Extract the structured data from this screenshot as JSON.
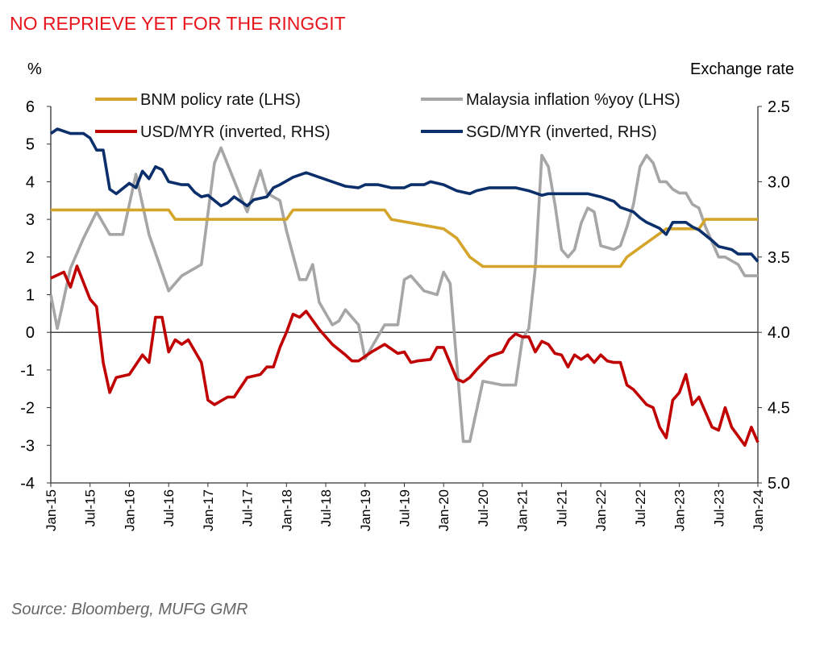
{
  "chart_data": {
    "type": "line",
    "title": "NO REPRIEVE YET FOR THE RINGGIT",
    "ylabel_left": "%",
    "ylabel_right": "Exchange rate",
    "ylim_left": [
      -4,
      6
    ],
    "yticks_left": [
      6,
      5,
      4,
      3,
      2,
      1,
      0,
      -1,
      -2,
      -3,
      -4
    ],
    "ylim_right": [
      2.5,
      5.0
    ],
    "right_axis_inverted": true,
    "yticks_right": [
      "2.5",
      "3.0",
      "3.5",
      "4.0",
      "4.5",
      "5.0"
    ],
    "xlim": [
      "2015-01",
      "2024-01"
    ],
    "xticks": [
      "Jan-15",
      "Jul-15",
      "Jan-16",
      "Jul-16",
      "Jan-17",
      "Jul-17",
      "Jan-18",
      "Jul-18",
      "Jan-19",
      "Jul-19",
      "Jan-20",
      "Jul-20",
      "Jan-21",
      "Jul-21",
      "Jan-22",
      "Jul-22",
      "Jan-23",
      "Jul-23",
      "Jan-24"
    ],
    "grid": false,
    "legend_position": "top",
    "source": "Source: Bloomberg, MUFG GMR",
    "colors": {
      "title": "#e8141b",
      "policy": "#d4a52a",
      "inflation": "#a6a6a6",
      "usd": "#c00000",
      "sgd": "#0b2f6b"
    },
    "series": [
      {
        "name": "BNM policy rate (LHS)",
        "axis": "left",
        "color_key": "policy",
        "points": [
          [
            "2015-01",
            3.25
          ],
          [
            "2016-07",
            3.25
          ],
          [
            "2016-08",
            3.0
          ],
          [
            "2018-01",
            3.0
          ],
          [
            "2018-02",
            3.25
          ],
          [
            "2019-04",
            3.25
          ],
          [
            "2019-05",
            3.0
          ],
          [
            "2020-01",
            2.75
          ],
          [
            "2020-03",
            2.5
          ],
          [
            "2020-05",
            2.0
          ],
          [
            "2020-07",
            1.75
          ],
          [
            "2022-04",
            1.75
          ],
          [
            "2022-05",
            2.0
          ],
          [
            "2022-07",
            2.25
          ],
          [
            "2022-09",
            2.5
          ],
          [
            "2022-11",
            2.75
          ],
          [
            "2023-04",
            2.75
          ],
          [
            "2023-05",
            3.0
          ],
          [
            "2024-01",
            3.0
          ]
        ]
      },
      {
        "name": "Malaysia inflation %yoy (LHS)",
        "axis": "left",
        "color_key": "inflation",
        "points": [
          [
            "2015-01",
            1.0
          ],
          [
            "2015-02",
            0.1
          ],
          [
            "2015-04",
            1.7
          ],
          [
            "2015-06",
            2.5
          ],
          [
            "2015-08",
            3.2
          ],
          [
            "2015-10",
            2.6
          ],
          [
            "2015-12",
            2.6
          ],
          [
            "2016-02",
            4.2
          ],
          [
            "2016-04",
            2.6
          ],
          [
            "2016-07",
            1.1
          ],
          [
            "2016-09",
            1.5
          ],
          [
            "2016-12",
            1.8
          ],
          [
            "2017-02",
            4.5
          ],
          [
            "2017-03",
            4.9
          ],
          [
            "2017-06",
            3.6
          ],
          [
            "2017-07",
            3.2
          ],
          [
            "2017-09",
            4.3
          ],
          [
            "2017-10",
            3.7
          ],
          [
            "2017-12",
            3.5
          ],
          [
            "2018-01",
            2.7
          ],
          [
            "2018-03",
            1.4
          ],
          [
            "2018-04",
            1.4
          ],
          [
            "2018-05",
            1.8
          ],
          [
            "2018-06",
            0.8
          ],
          [
            "2018-08",
            0.2
          ],
          [
            "2018-09",
            0.3
          ],
          [
            "2018-10",
            0.6
          ],
          [
            "2018-12",
            0.2
          ],
          [
            "2019-01",
            -0.7
          ],
          [
            "2019-02",
            -0.4
          ],
          [
            "2019-04",
            0.2
          ],
          [
            "2019-06",
            0.2
          ],
          [
            "2019-07",
            1.4
          ],
          [
            "2019-08",
            1.5
          ],
          [
            "2019-10",
            1.1
          ],
          [
            "2019-12",
            1.0
          ],
          [
            "2020-01",
            1.6
          ],
          [
            "2020-02",
            1.3
          ],
          [
            "2020-04",
            -2.9
          ],
          [
            "2020-05",
            -2.9
          ],
          [
            "2020-07",
            -1.3
          ],
          [
            "2020-10",
            -1.4
          ],
          [
            "2020-12",
            -1.4
          ],
          [
            "2021-01",
            -0.2
          ],
          [
            "2021-02",
            0.1
          ],
          [
            "2021-03",
            1.7
          ],
          [
            "2021-04",
            4.7
          ],
          [
            "2021-05",
            4.4
          ],
          [
            "2021-06",
            3.4
          ],
          [
            "2021-07",
            2.2
          ],
          [
            "2021-08",
            2.0
          ],
          [
            "2021-09",
            2.2
          ],
          [
            "2021-10",
            2.9
          ],
          [
            "2021-11",
            3.3
          ],
          [
            "2021-12",
            3.2
          ],
          [
            "2022-01",
            2.3
          ],
          [
            "2022-03",
            2.2
          ],
          [
            "2022-04",
            2.3
          ],
          [
            "2022-05",
            2.8
          ],
          [
            "2022-06",
            3.4
          ],
          [
            "2022-07",
            4.4
          ],
          [
            "2022-08",
            4.7
          ],
          [
            "2022-09",
            4.5
          ],
          [
            "2022-10",
            4.0
          ],
          [
            "2022-11",
            4.0
          ],
          [
            "2022-12",
            3.8
          ],
          [
            "2023-01",
            3.7
          ],
          [
            "2023-02",
            3.7
          ],
          [
            "2023-03",
            3.4
          ],
          [
            "2023-04",
            3.3
          ],
          [
            "2023-05",
            2.8
          ],
          [
            "2023-06",
            2.4
          ],
          [
            "2023-07",
            2.0
          ],
          [
            "2023-08",
            2.0
          ],
          [
            "2023-09",
            1.9
          ],
          [
            "2023-10",
            1.8
          ],
          [
            "2023-11",
            1.5
          ],
          [
            "2024-01",
            1.5
          ]
        ]
      },
      {
        "name": "USD/MYR (inverted, RHS)",
        "axis": "right",
        "color_key": "usd",
        "points": [
          [
            "2015-01",
            3.64
          ],
          [
            "2015-03",
            3.6
          ],
          [
            "2015-04",
            3.7
          ],
          [
            "2015-05",
            3.56
          ],
          [
            "2015-07",
            3.78
          ],
          [
            "2015-08",
            3.83
          ],
          [
            "2015-09",
            4.2
          ],
          [
            "2015-10",
            4.4
          ],
          [
            "2015-11",
            4.3
          ],
          [
            "2016-01",
            4.28
          ],
          [
            "2016-03",
            4.15
          ],
          [
            "2016-04",
            4.2
          ],
          [
            "2016-05",
            3.9
          ],
          [
            "2016-06",
            3.9
          ],
          [
            "2016-07",
            4.13
          ],
          [
            "2016-08",
            4.05
          ],
          [
            "2016-09",
            4.08
          ],
          [
            "2016-10",
            4.05
          ],
          [
            "2016-12",
            4.2
          ],
          [
            "2017-01",
            4.45
          ],
          [
            "2017-02",
            4.48
          ],
          [
            "2017-04",
            4.43
          ],
          [
            "2017-05",
            4.43
          ],
          [
            "2017-07",
            4.3
          ],
          [
            "2017-09",
            4.28
          ],
          [
            "2017-10",
            4.23
          ],
          [
            "2017-11",
            4.23
          ],
          [
            "2017-12",
            4.1
          ],
          [
            "2018-01",
            4.0
          ],
          [
            "2018-02",
            3.88
          ],
          [
            "2018-03",
            3.9
          ],
          [
            "2018-04",
            3.86
          ],
          [
            "2018-06",
            3.98
          ],
          [
            "2018-08",
            4.08
          ],
          [
            "2018-10",
            4.15
          ],
          [
            "2018-11",
            4.19
          ],
          [
            "2018-12",
            4.19
          ],
          [
            "2019-02",
            4.13
          ],
          [
            "2019-04",
            4.08
          ],
          [
            "2019-06",
            4.14
          ],
          [
            "2019-07",
            4.13
          ],
          [
            "2019-08",
            4.2
          ],
          [
            "2019-09",
            4.19
          ],
          [
            "2019-11",
            4.18
          ],
          [
            "2019-12",
            4.1
          ],
          [
            "2020-01",
            4.1
          ],
          [
            "2020-03",
            4.31
          ],
          [
            "2020-04",
            4.33
          ],
          [
            "2020-05",
            4.3
          ],
          [
            "2020-06",
            4.25
          ],
          [
            "2020-08",
            4.16
          ],
          [
            "2020-10",
            4.13
          ],
          [
            "2020-11",
            4.05
          ],
          [
            "2020-12",
            4.01
          ],
          [
            "2021-01",
            4.03
          ],
          [
            "2021-02",
            4.03
          ],
          [
            "2021-03",
            4.13
          ],
          [
            "2021-04",
            4.06
          ],
          [
            "2021-05",
            4.08
          ],
          [
            "2021-06",
            4.14
          ],
          [
            "2021-07",
            4.15
          ],
          [
            "2021-08",
            4.23
          ],
          [
            "2021-09",
            4.15
          ],
          [
            "2021-10",
            4.18
          ],
          [
            "2021-11",
            4.15
          ],
          [
            "2021-12",
            4.2
          ],
          [
            "2022-01",
            4.15
          ],
          [
            "2022-02",
            4.19
          ],
          [
            "2022-03",
            4.2
          ],
          [
            "2022-04",
            4.2
          ],
          [
            "2022-05",
            4.35
          ],
          [
            "2022-06",
            4.38
          ],
          [
            "2022-07",
            4.43
          ],
          [
            "2022-08",
            4.48
          ],
          [
            "2022-09",
            4.5
          ],
          [
            "2022-10",
            4.63
          ],
          [
            "2022-11",
            4.7
          ],
          [
            "2022-12",
            4.45
          ],
          [
            "2023-01",
            4.4
          ],
          [
            "2023-02",
            4.28
          ],
          [
            "2023-03",
            4.48
          ],
          [
            "2023-04",
            4.43
          ],
          [
            "2023-05",
            4.53
          ],
          [
            "2023-06",
            4.63
          ],
          [
            "2023-07",
            4.65
          ],
          [
            "2023-08",
            4.5
          ],
          [
            "2023-09",
            4.63
          ],
          [
            "2023-10",
            4.69
          ],
          [
            "2023-11",
            4.75
          ],
          [
            "2023-12",
            4.63
          ],
          [
            "2024-01",
            4.73
          ]
        ]
      },
      {
        "name": "SGD/MYR (inverted, RHS)",
        "axis": "right",
        "color_key": "sgd",
        "points": [
          [
            "2015-01",
            2.68
          ],
          [
            "2015-02",
            2.65
          ],
          [
            "2015-04",
            2.68
          ],
          [
            "2015-06",
            2.68
          ],
          [
            "2015-07",
            2.71
          ],
          [
            "2015-08",
            2.79
          ],
          [
            "2015-09",
            2.79
          ],
          [
            "2015-10",
            3.05
          ],
          [
            "2015-11",
            3.08
          ],
          [
            "2016-01",
            3.01
          ],
          [
            "2016-02",
            3.04
          ],
          [
            "2016-03",
            2.93
          ],
          [
            "2016-04",
            2.98
          ],
          [
            "2016-05",
            2.9
          ],
          [
            "2016-06",
            2.92
          ],
          [
            "2016-07",
            3.0
          ],
          [
            "2016-09",
            3.02
          ],
          [
            "2016-10",
            3.02
          ],
          [
            "2016-11",
            3.07
          ],
          [
            "2016-12",
            3.1
          ],
          [
            "2017-01",
            3.09
          ],
          [
            "2017-03",
            3.16
          ],
          [
            "2017-04",
            3.14
          ],
          [
            "2017-05",
            3.1
          ],
          [
            "2017-07",
            3.16
          ],
          [
            "2017-08",
            3.12
          ],
          [
            "2017-10",
            3.1
          ],
          [
            "2017-11",
            3.04
          ],
          [
            "2017-12",
            3.02
          ],
          [
            "2018-02",
            2.97
          ],
          [
            "2018-04",
            2.94
          ],
          [
            "2018-06",
            2.97
          ],
          [
            "2018-08",
            3.0
          ],
          [
            "2018-10",
            3.03
          ],
          [
            "2018-12",
            3.04
          ],
          [
            "2019-01",
            3.02
          ],
          [
            "2019-03",
            3.02
          ],
          [
            "2019-05",
            3.04
          ],
          [
            "2019-07",
            3.04
          ],
          [
            "2019-08",
            3.02
          ],
          [
            "2019-10",
            3.02
          ],
          [
            "2019-11",
            3.0
          ],
          [
            "2019-12",
            3.01
          ],
          [
            "2020-01",
            3.02
          ],
          [
            "2020-03",
            3.06
          ],
          [
            "2020-05",
            3.08
          ],
          [
            "2020-06",
            3.06
          ],
          [
            "2020-08",
            3.04
          ],
          [
            "2020-10",
            3.04
          ],
          [
            "2020-12",
            3.04
          ],
          [
            "2021-02",
            3.06
          ],
          [
            "2021-04",
            3.09
          ],
          [
            "2021-05",
            3.08
          ],
          [
            "2021-07",
            3.08
          ],
          [
            "2021-09",
            3.08
          ],
          [
            "2021-11",
            3.08
          ],
          [
            "2022-01",
            3.1
          ],
          [
            "2022-03",
            3.13
          ],
          [
            "2022-04",
            3.17
          ],
          [
            "2022-06",
            3.2
          ],
          [
            "2022-07",
            3.24
          ],
          [
            "2022-08",
            3.27
          ],
          [
            "2022-10",
            3.31
          ],
          [
            "2022-11",
            3.35
          ],
          [
            "2022-12",
            3.27
          ],
          [
            "2023-02",
            3.27
          ],
          [
            "2023-03",
            3.3
          ],
          [
            "2023-04",
            3.32
          ],
          [
            "2023-06",
            3.39
          ],
          [
            "2023-07",
            3.43
          ],
          [
            "2023-09",
            3.45
          ],
          [
            "2023-10",
            3.48
          ],
          [
            "2023-12",
            3.48
          ],
          [
            "2024-01",
            3.53
          ]
        ]
      }
    ]
  }
}
